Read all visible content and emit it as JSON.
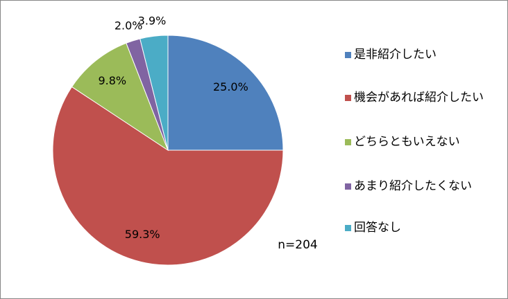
{
  "chart_data": {
    "type": "pie",
    "categories": [
      "是非紹介したい",
      "機会があれば紹介したい",
      "どちらともいえない",
      "あまり紹介したくない",
      "回答なし"
    ],
    "values": [
      25.0,
      59.3,
      9.8,
      2.0,
      3.9
    ],
    "value_labels": [
      "25.0%",
      "59.3%",
      "9.8%",
      "2.0%",
      "3.9%"
    ],
    "colors": [
      "#4f81bd",
      "#c0504d",
      "#9bbb59",
      "#8064a2",
      "#4bacc6"
    ],
    "annotation": "n=204",
    "legend": "right"
  }
}
